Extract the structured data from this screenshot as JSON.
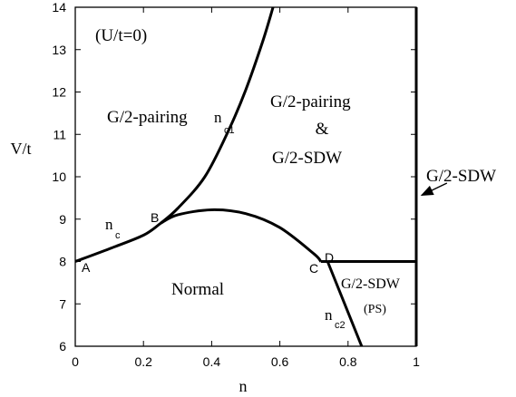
{
  "chart_data": {
    "type": "line",
    "xlabel": "n",
    "ylabel": "V/t",
    "xlim": [
      0,
      1
    ],
    "ylim": [
      6,
      14
    ],
    "x_ticks": [
      "0",
      "0.2",
      "0.4",
      "0.6",
      "0.8",
      "1"
    ],
    "y_ticks": [
      "6",
      "7",
      "8",
      "9",
      "10",
      "11",
      "12",
      "13",
      "14"
    ],
    "grid": false,
    "annotations": {
      "condition": "(U/t=0)",
      "region_pairing": "G/2-pairing",
      "region_mixed_1": "G/2-pairing",
      "region_mixed_2": "&",
      "region_mixed_3": "G/2-SDW",
      "region_normal": "Normal",
      "region_ps_1": "G/2-SDW",
      "region_ps_2": "(PS)",
      "side_label": "G/2-SDW",
      "point_A": "A",
      "point_B": "B",
      "point_C": "C",
      "point_D": "D",
      "curve_nc": "n",
      "curve_nc_sub": "c",
      "curve_nc1": "n",
      "curve_nc1_sub": "c1",
      "curve_nc2": "n",
      "curve_nc2_sub": "c2"
    },
    "series": [
      {
        "values": [
          [
            0.0,
            8.0
          ],
          [
            0.1,
            8.3
          ],
          [
            0.2,
            8.62
          ],
          [
            0.25,
            8.9
          ]
        ]
      },
      {
        "values": [
          [
            0.25,
            8.9
          ],
          [
            0.3,
            9.1
          ],
          [
            0.4,
            9.22
          ],
          [
            0.5,
            9.13
          ],
          [
            0.6,
            8.8
          ],
          [
            0.7,
            8.18
          ],
          [
            0.72,
            8.0
          ]
        ]
      },
      {
        "values": [
          [
            0.25,
            8.9
          ],
          [
            0.3,
            9.25
          ],
          [
            0.38,
            10.0
          ],
          [
            0.45,
            11.1
          ],
          [
            0.5,
            12.05
          ],
          [
            0.55,
            13.2
          ],
          [
            0.58,
            14.0
          ]
        ]
      },
      {
        "values": [
          [
            0.72,
            8.0
          ],
          [
            0.74,
            8.0
          ]
        ]
      },
      {
        "values": [
          [
            0.74,
            8.0
          ],
          [
            1.0,
            8.0
          ]
        ]
      },
      {
        "values": [
          [
            0.74,
            8.0
          ],
          [
            0.84,
            6.0
          ]
        ]
      },
      {
        "values": [
          [
            1.0,
            6.0
          ],
          [
            1.0,
            14.0
          ]
        ]
      }
    ],
    "arrow": {
      "from": [
        1.09,
        9.85
      ],
      "to": [
        1.0,
        9.5
      ]
    }
  }
}
